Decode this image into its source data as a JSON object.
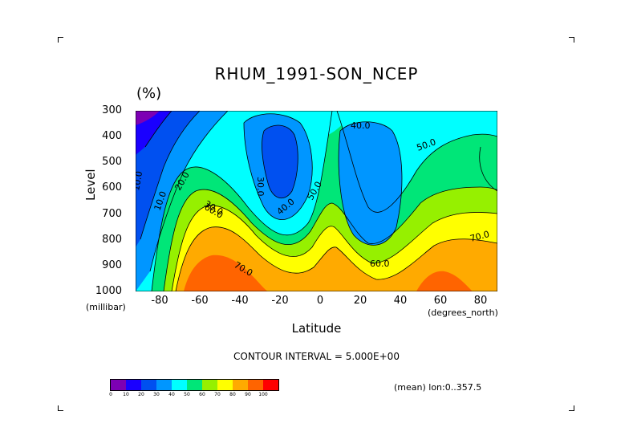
{
  "chart_data": {
    "type": "heatmap",
    "title": "RHUM_1991-SON_NCEP",
    "units": "(%)",
    "ylabel": "Level",
    "xlabel": "Latitude",
    "y_unit_label": "(millibar)",
    "x_unit_label": "(degrees_north)",
    "y_ticks": [
      "300",
      "400",
      "500",
      "600",
      "700",
      "800",
      "900",
      "1000"
    ],
    "x_ticks": [
      "-80",
      "-60",
      "-40",
      "-20",
      "0",
      "20",
      "40",
      "60",
      "80"
    ],
    "ylim": [
      1000,
      300
    ],
    "xlim": [
      -90,
      90
    ],
    "contour_interval_text": "CONTOUR INTERVAL = 5.000E+00",
    "mean_text": "(mean) lon:0..357.5",
    "contour_labels": [
      "10.0",
      "10.0",
      "20.0",
      "30.0",
      "30.0",
      "40.0",
      "40.0",
      "50.0",
      "50.0",
      "60.0",
      "60.0",
      "70.0",
      "70.0"
    ],
    "colorbar": {
      "labels": [
        "0",
        "10",
        "20",
        "30",
        "40",
        "50",
        "60",
        "70",
        "80",
        "90",
        "100"
      ],
      "colors": [
        "#7d00b4",
        "#1a00ff",
        "#0050f0",
        "#0096ff",
        "#00ffff",
        "#00e678",
        "#96f000",
        "#ffff00",
        "#ffaa00",
        "#ff6400",
        "#ff0000"
      ]
    },
    "grid": false,
    "legend": "bottom-left colorbar"
  }
}
